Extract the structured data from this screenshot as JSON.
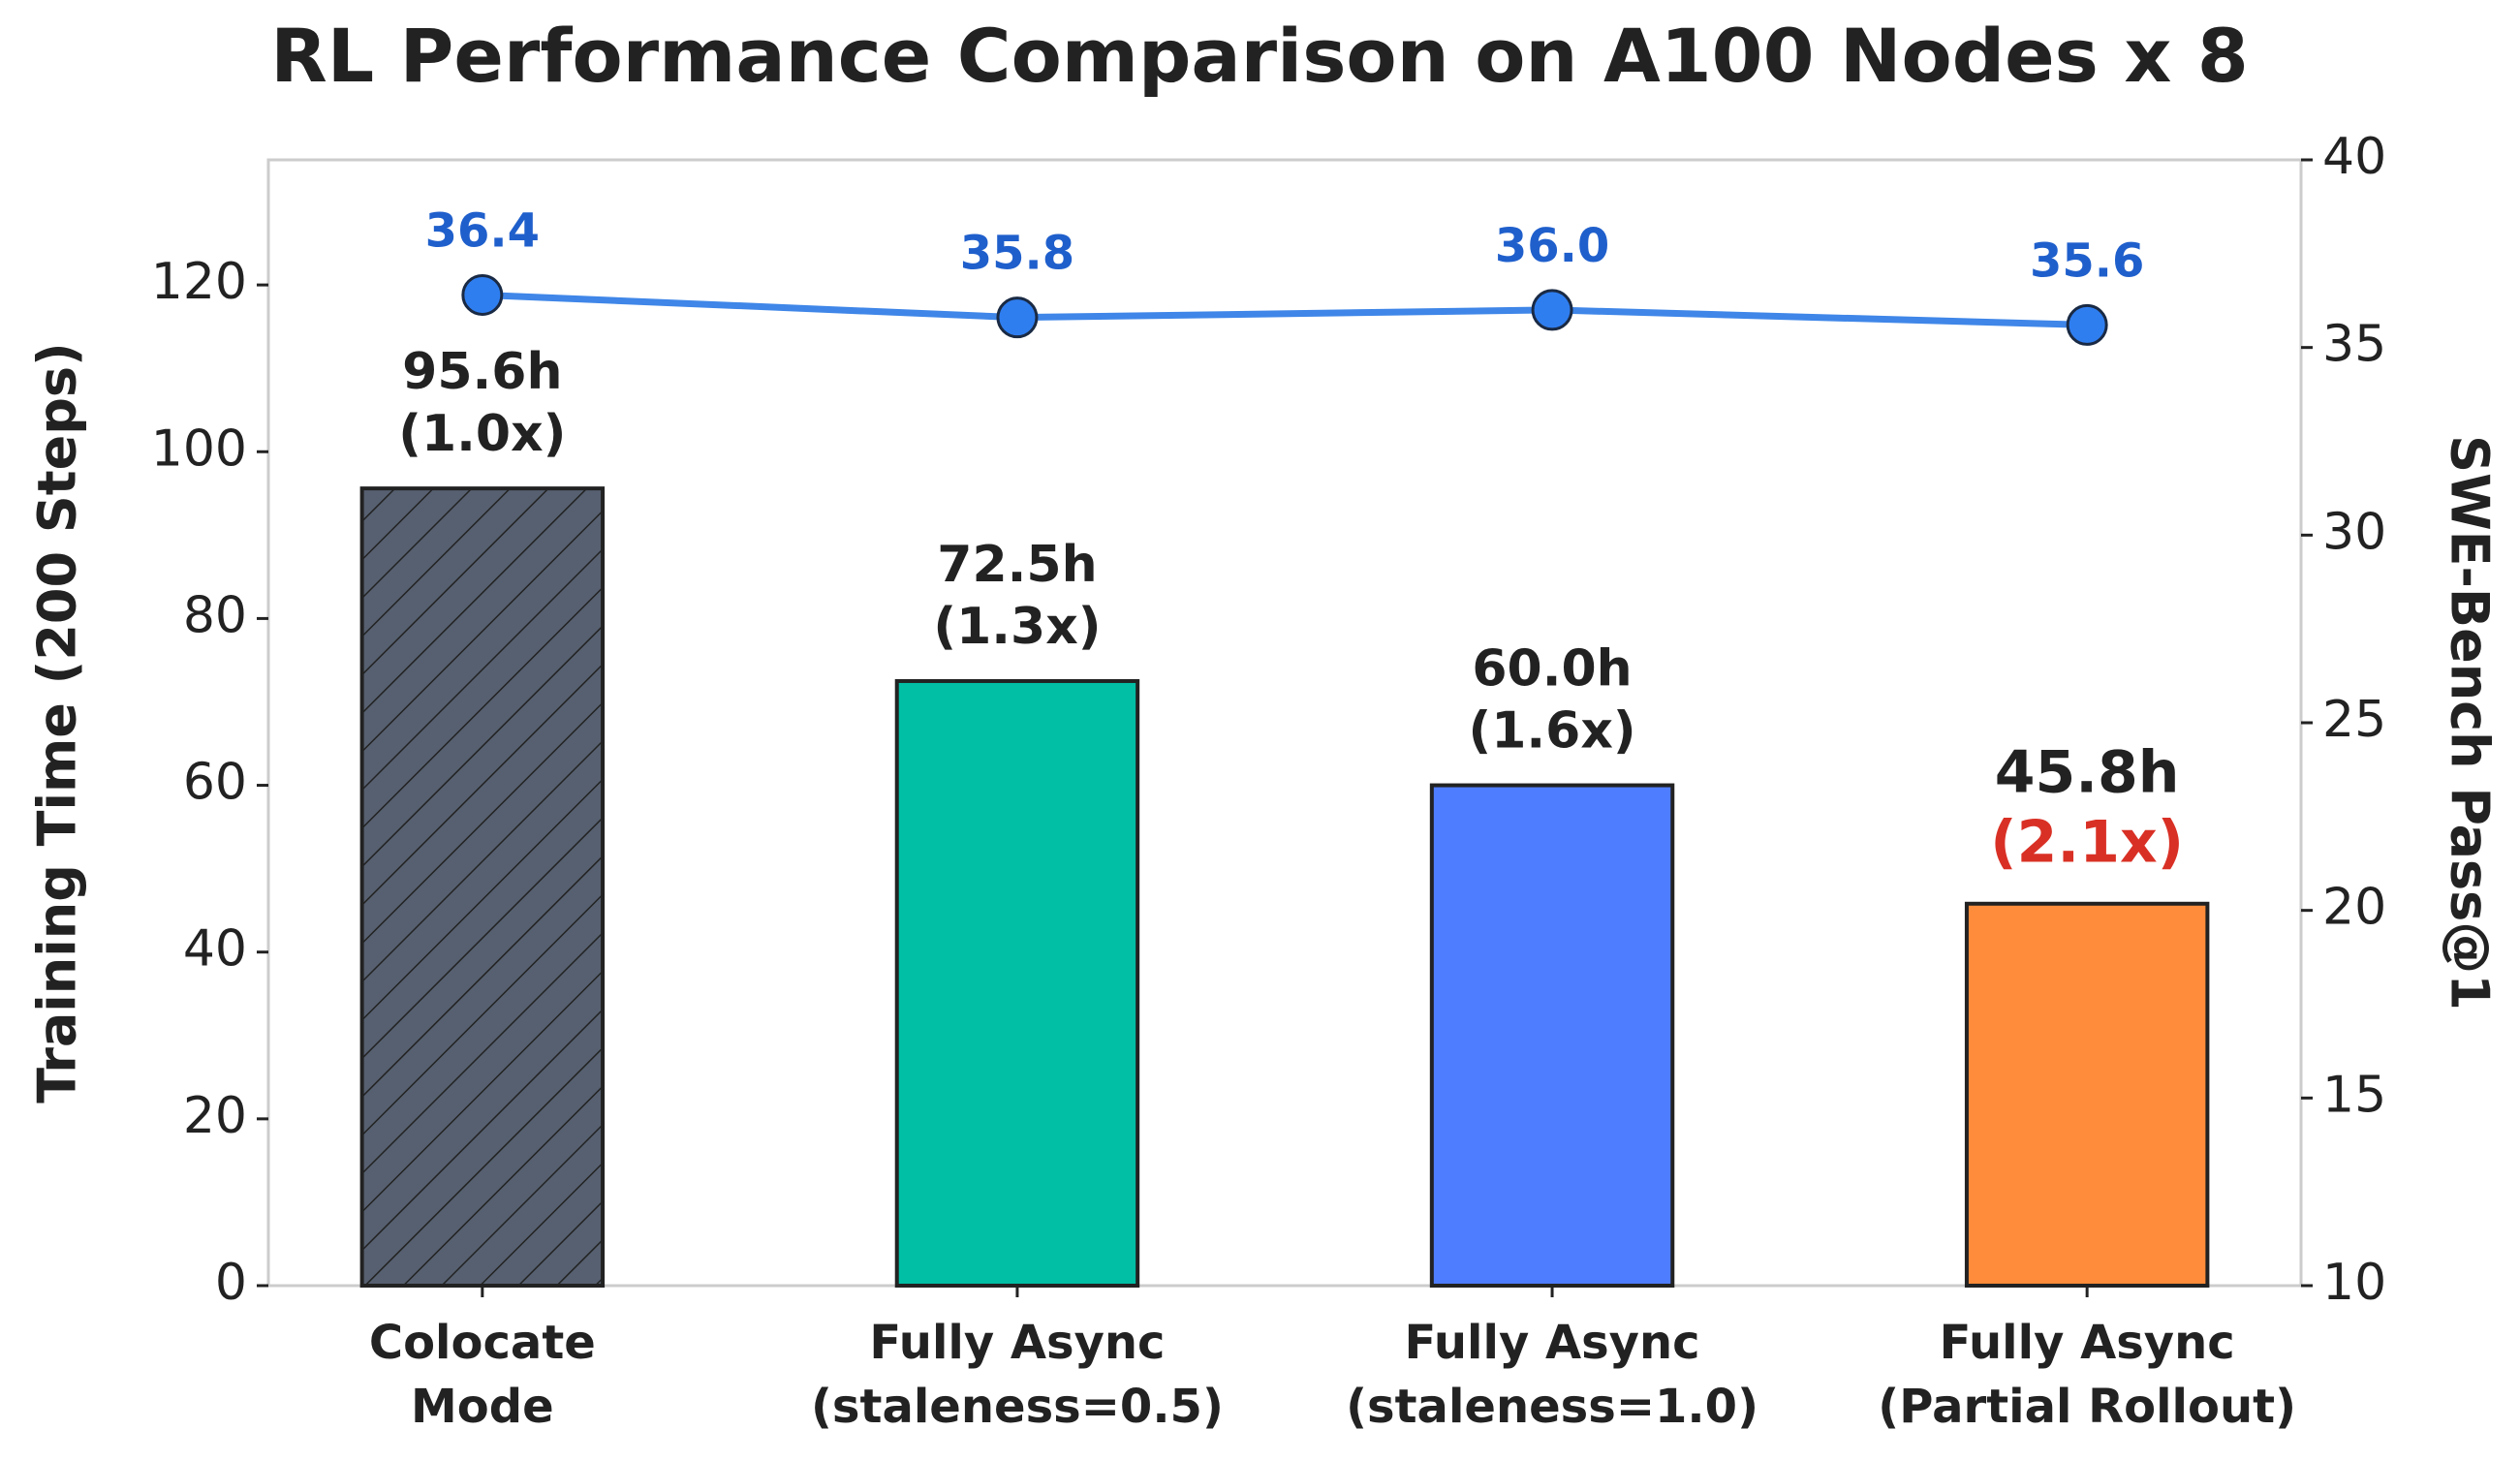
{
  "chart_data": {
    "type": "bar_line",
    "title": "RL Performance Comparison on A100 Nodes x 8",
    "categories": [
      [
        "Colocate",
        "Mode"
      ],
      [
        "Fully Async",
        "(staleness=0.5)"
      ],
      [
        "Fully Async",
        "(staleness=1.0)"
      ],
      [
        "Fully Async",
        "(Partial Rollout)"
      ]
    ],
    "y_label": "Training Time (200 Steps)",
    "y2_label": "SWE-Bench Pass@1",
    "ylim": [
      0,
      135
    ],
    "yticks": [
      0,
      20,
      40,
      60,
      80,
      100,
      120
    ],
    "y2lim": [
      10,
      40
    ],
    "y2ticks": [
      10,
      15,
      20,
      25,
      30,
      35,
      40
    ],
    "grid": false,
    "series": [
      {
        "name": "Training Time",
        "type": "bar",
        "values": [
          95.6,
          72.5,
          60.0,
          45.8
        ],
        "value_labels": [
          "95.6h",
          "72.5h",
          "60.0h",
          "45.8h"
        ],
        "colors": [
          "#566070",
          "#00bfa5",
          "#4f7dff",
          "#ff8c3a"
        ],
        "hatched": [
          true,
          false,
          false,
          false
        ],
        "annotations": [
          "(1.0x)",
          "(1.3x)",
          "(1.6x)",
          "(2.1x)"
        ],
        "annotation_colors": [
          "#222222",
          "#222222",
          "#222222",
          "#d93025"
        ]
      },
      {
        "name": "SWE-Bench Pass@1",
        "type": "line",
        "axis": "y2",
        "color": "#3f86e8",
        "label_color": "#1f5fcc",
        "values": [
          36.4,
          35.8,
          36.0,
          35.6
        ],
        "value_labels": [
          "36.4",
          "35.8",
          "36.0",
          "35.6"
        ]
      }
    ]
  }
}
